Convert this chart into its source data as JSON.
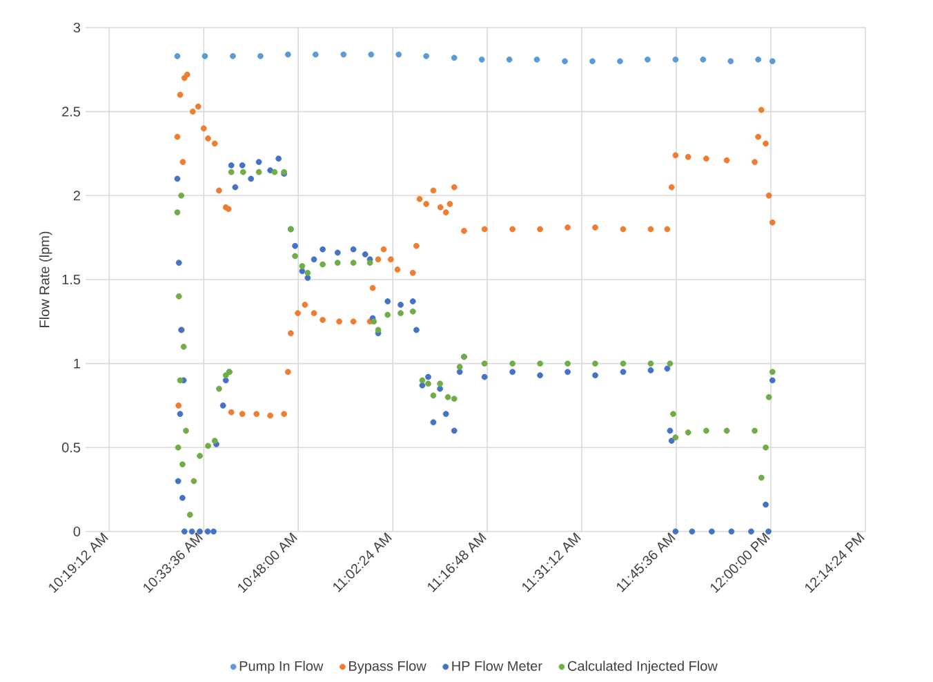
{
  "chart_data": {
    "type": "scatter",
    "ylabel": "Flow Rate (lpm)",
    "marker": "circle",
    "grid": true,
    "legend": "bottom",
    "xlim": [
      10.26,
      12.24
    ],
    "xticks": [
      {
        "value": 10.32,
        "label": "10:19:12 AM"
      },
      {
        "value": 10.56,
        "label": "10:33:36 AM"
      },
      {
        "value": 10.8,
        "label": "10:48:00 AM"
      },
      {
        "value": 11.04,
        "label": "11:02:24 AM"
      },
      {
        "value": 11.28,
        "label": "11:16:48 AM"
      },
      {
        "value": 11.52,
        "label": "11:31:12 AM"
      },
      {
        "value": 11.76,
        "label": "11:45:36 AM"
      },
      {
        "value": 12.0,
        "label": "12:00:00 PM"
      },
      {
        "value": 12.24,
        "label": "12:14:24 PM"
      }
    ],
    "ylim": [
      0,
      3
    ],
    "yticks": [
      0,
      0.5,
      1,
      1.5,
      2,
      2.5,
      3
    ],
    "series": [
      {
        "name": "Pump In Flow",
        "color": "#5b9bd5",
        "x": [
          10.493,
          10.563,
          10.634,
          10.704,
          10.774,
          10.844,
          10.915,
          10.985,
          11.055,
          11.125,
          11.196,
          11.266,
          11.336,
          11.406,
          11.477,
          11.547,
          11.617,
          11.687,
          11.758,
          11.828,
          11.898,
          11.968,
          12.004
        ],
        "values": [
          2.83,
          2.83,
          2.83,
          2.83,
          2.84,
          2.84,
          2.84,
          2.84,
          2.84,
          2.83,
          2.82,
          2.81,
          2.81,
          2.81,
          2.8,
          2.8,
          2.8,
          2.81,
          2.81,
          2.81,
          2.8,
          2.81,
          2.8
        ]
      },
      {
        "name": "Bypass Flow",
        "color": "#ed7d31",
        "x": [
          10.493,
          10.496,
          10.5,
          10.504,
          10.507,
          10.511,
          10.518,
          10.532,
          10.546,
          10.56,
          10.571,
          10.588,
          10.599,
          10.616,
          10.623,
          10.63,
          10.658,
          10.694,
          10.729,
          10.764,
          10.774,
          10.781,
          10.799,
          10.817,
          10.84,
          10.862,
          10.904,
          10.94,
          10.982,
          10.989,
          11.003,
          11.017,
          11.035,
          11.052,
          11.091,
          11.1,
          11.108,
          11.125,
          11.143,
          11.161,
          11.175,
          11.185,
          11.196,
          11.221,
          11.273,
          11.344,
          11.414,
          11.484,
          11.554,
          11.625,
          11.695,
          11.737,
          11.748,
          11.758,
          11.79,
          11.836,
          11.888,
          11.959,
          11.968,
          11.976,
          11.987,
          11.995,
          12.004
        ],
        "values": [
          2.35,
          0.75,
          2.6,
          1.2,
          2.2,
          2.7,
          2.72,
          2.5,
          2.53,
          2.4,
          2.34,
          2.31,
          2.03,
          1.93,
          1.92,
          0.71,
          0.7,
          0.7,
          0.69,
          0.7,
          0.95,
          1.18,
          1.3,
          1.35,
          1.3,
          1.26,
          1.25,
          1.25,
          1.25,
          1.45,
          1.62,
          1.68,
          1.62,
          1.56,
          1.54,
          1.7,
          1.98,
          1.95,
          2.03,
          1.93,
          1.9,
          1.95,
          2.05,
          1.79,
          1.8,
          1.8,
          1.8,
          1.81,
          1.81,
          1.8,
          1.8,
          1.8,
          2.05,
          2.24,
          2.23,
          2.22,
          2.21,
          2.2,
          2.35,
          2.51,
          2.31,
          2.0,
          1.84
        ]
      },
      {
        "name": "HP Flow Meter",
        "color": "#4472c4",
        "x": [
          10.493,
          10.495,
          10.497,
          10.5,
          10.503,
          10.506,
          10.509,
          10.511,
          10.53,
          10.55,
          10.57,
          10.585,
          10.592,
          10.609,
          10.616,
          10.625,
          10.63,
          10.64,
          10.658,
          10.68,
          10.7,
          10.729,
          10.75,
          10.764,
          10.781,
          10.792,
          10.81,
          10.824,
          10.84,
          10.862,
          10.9,
          10.94,
          10.97,
          10.982,
          10.989,
          11.003,
          11.027,
          11.06,
          11.091,
          11.1,
          11.115,
          11.13,
          11.143,
          11.16,
          11.175,
          11.196,
          11.21,
          11.221,
          11.273,
          11.344,
          11.414,
          11.484,
          11.554,
          11.625,
          11.695,
          11.737,
          11.744,
          11.748,
          11.758,
          11.8,
          11.85,
          11.9,
          11.95,
          11.987,
          11.994,
          12.004
        ],
        "values": [
          2.1,
          0.3,
          1.6,
          0.7,
          1.2,
          0.2,
          0.9,
          0,
          0,
          0,
          0,
          0,
          0.52,
          0.75,
          0.9,
          0.95,
          2.18,
          2.05,
          2.18,
          2.1,
          2.2,
          2.15,
          2.22,
          2.13,
          1.8,
          1.7,
          1.55,
          1.51,
          1.62,
          1.68,
          1.66,
          1.68,
          1.65,
          1.62,
          1.27,
          1.18,
          1.37,
          1.35,
          1.37,
          1.2,
          0.87,
          0.92,
          0.65,
          0.85,
          0.7,
          0.6,
          0.95,
          1.04,
          0.92,
          0.95,
          0.93,
          0.95,
          0.93,
          0.95,
          0.96,
          0.97,
          0.6,
          0.54,
          0,
          0,
          0,
          0,
          0,
          0.16,
          0,
          0.9
        ]
      },
      {
        "name": "Calculated Injected Flow",
        "color": "#70ad47",
        "x": [
          10.493,
          10.495,
          10.497,
          10.5,
          10.503,
          10.506,
          10.509,
          10.515,
          10.525,
          10.535,
          10.55,
          10.571,
          10.588,
          10.599,
          10.616,
          10.625,
          10.63,
          10.66,
          10.7,
          10.74,
          10.764,
          10.781,
          10.792,
          10.81,
          10.824,
          10.862,
          10.9,
          10.94,
          10.982,
          10.992,
          11.003,
          11.027,
          11.06,
          11.091,
          11.115,
          11.13,
          11.143,
          11.16,
          11.18,
          11.196,
          11.21,
          11.221,
          11.273,
          11.344,
          11.414,
          11.484,
          11.554,
          11.625,
          11.695,
          11.744,
          11.752,
          11.758,
          11.79,
          11.836,
          11.888,
          11.959,
          11.976,
          11.987,
          11.995,
          12.004
        ],
        "values": [
          1.9,
          0.5,
          1.4,
          0.9,
          2.0,
          0.4,
          1.1,
          0.6,
          0.1,
          0.3,
          0.45,
          0.51,
          0.54,
          0.85,
          0.93,
          0.95,
          2.14,
          2.14,
          2.14,
          2.14,
          2.14,
          1.8,
          1.64,
          1.58,
          1.54,
          1.59,
          1.6,
          1.6,
          1.6,
          1.25,
          1.2,
          1.29,
          1.3,
          1.31,
          0.9,
          0.88,
          0.81,
          0.88,
          0.8,
          0.79,
          0.98,
          1.04,
          1.0,
          1.0,
          1.0,
          1.0,
          1.0,
          1.0,
          1.0,
          1.0,
          0.7,
          0.56,
          0.59,
          0.6,
          0.6,
          0.6,
          0.32,
          0.5,
          0.8,
          0.95
        ]
      }
    ]
  }
}
